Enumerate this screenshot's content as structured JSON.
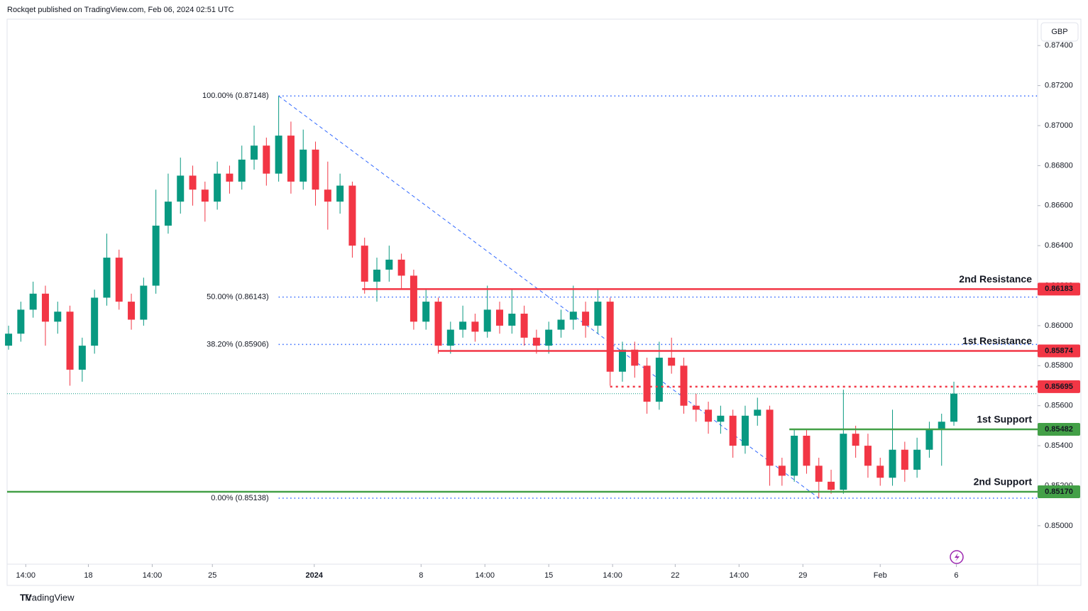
{
  "header": {
    "published": "Rockqet published on TradingView.com, Feb 06, 2024 02:51 UTC",
    "currency": "GBP",
    "brand": "TradingView"
  },
  "chart_data": {
    "type": "candlestick",
    "up_color": "#089981",
    "down_color": "#f23645",
    "candles": [
      [
        0.859,
        0.86,
        0.8588,
        0.8596
      ],
      [
        0.8596,
        0.8612,
        0.8592,
        0.8608
      ],
      [
        0.8608,
        0.8622,
        0.8604,
        0.8616
      ],
      [
        0.8616,
        0.862,
        0.859,
        0.8602
      ],
      [
        0.8602,
        0.8612,
        0.8596,
        0.8607
      ],
      [
        0.8607,
        0.861,
        0.857,
        0.8578
      ],
      [
        0.8578,
        0.8594,
        0.8572,
        0.859
      ],
      [
        0.859,
        0.8618,
        0.8586,
        0.8614
      ],
      [
        0.8614,
        0.8646,
        0.861,
        0.8634
      ],
      [
        0.8634,
        0.8638,
        0.8608,
        0.8612
      ],
      [
        0.8612,
        0.8616,
        0.8598,
        0.8603
      ],
      [
        0.8603,
        0.8624,
        0.86,
        0.862
      ],
      [
        0.862,
        0.8668,
        0.8616,
        0.865
      ],
      [
        0.865,
        0.8676,
        0.8646,
        0.8662
      ],
      [
        0.8662,
        0.8684,
        0.8656,
        0.8675
      ],
      [
        0.8675,
        0.868,
        0.866,
        0.8668
      ],
      [
        0.8668,
        0.8672,
        0.8652,
        0.8662
      ],
      [
        0.8662,
        0.8682,
        0.8658,
        0.8676
      ],
      [
        0.8676,
        0.868,
        0.8666,
        0.8672
      ],
      [
        0.8672,
        0.869,
        0.8668,
        0.8683
      ],
      [
        0.8683,
        0.87,
        0.8678,
        0.869
      ],
      [
        0.869,
        0.8694,
        0.867,
        0.8676
      ],
      [
        0.8676,
        0.87148,
        0.8672,
        0.8695
      ],
      [
        0.8695,
        0.8702,
        0.8666,
        0.8672
      ],
      [
        0.8672,
        0.8698,
        0.8668,
        0.8688
      ],
      [
        0.8688,
        0.8692,
        0.866,
        0.8668
      ],
      [
        0.8668,
        0.8682,
        0.8648,
        0.8662
      ],
      [
        0.8662,
        0.8676,
        0.8656,
        0.867
      ],
      [
        0.867,
        0.8672,
        0.8634,
        0.864
      ],
      [
        0.864,
        0.8644,
        0.8616,
        0.8622
      ],
      [
        0.8622,
        0.8634,
        0.8612,
        0.8628
      ],
      [
        0.8628,
        0.864,
        0.8622,
        0.8633
      ],
      [
        0.8633,
        0.8636,
        0.8618,
        0.8625
      ],
      [
        0.8625,
        0.8628,
        0.8598,
        0.8602
      ],
      [
        0.8602,
        0.8618,
        0.8598,
        0.8612
      ],
      [
        0.8612,
        0.8614,
        0.8586,
        0.859
      ],
      [
        0.859,
        0.8602,
        0.8586,
        0.8598
      ],
      [
        0.8598,
        0.861,
        0.8594,
        0.8602
      ],
      [
        0.8602,
        0.8606,
        0.8592,
        0.8597
      ],
      [
        0.8597,
        0.862,
        0.8594,
        0.8608
      ],
      [
        0.8608,
        0.8612,
        0.8596,
        0.86
      ],
      [
        0.86,
        0.8618,
        0.8596,
        0.8606
      ],
      [
        0.8606,
        0.861,
        0.859,
        0.8594
      ],
      [
        0.8594,
        0.8598,
        0.8586,
        0.859
      ],
      [
        0.859,
        0.8602,
        0.8586,
        0.8598
      ],
      [
        0.8598,
        0.8608,
        0.8594,
        0.8603
      ],
      [
        0.8603,
        0.862,
        0.8598,
        0.8607
      ],
      [
        0.8607,
        0.8612,
        0.8594,
        0.86
      ],
      [
        0.86,
        0.8618,
        0.8596,
        0.8612
      ],
      [
        0.8612,
        0.8614,
        0.857,
        0.8577
      ],
      [
        0.8577,
        0.8592,
        0.8572,
        0.8588
      ],
      [
        0.8588,
        0.8592,
        0.8574,
        0.858
      ],
      [
        0.858,
        0.8584,
        0.8556,
        0.8562
      ],
      [
        0.8562,
        0.8592,
        0.8558,
        0.8584
      ],
      [
        0.8584,
        0.8594,
        0.8576,
        0.858
      ],
      [
        0.858,
        0.8584,
        0.8556,
        0.856
      ],
      [
        0.856,
        0.8566,
        0.8552,
        0.8558
      ],
      [
        0.8558,
        0.8562,
        0.8546,
        0.8552
      ],
      [
        0.8552,
        0.856,
        0.8546,
        0.8555
      ],
      [
        0.8555,
        0.8558,
        0.8534,
        0.854
      ],
      [
        0.854,
        0.856,
        0.8536,
        0.8555
      ],
      [
        0.8555,
        0.8564,
        0.855,
        0.8558
      ],
      [
        0.8558,
        0.856,
        0.852,
        0.853
      ],
      [
        0.853,
        0.8534,
        0.852,
        0.8525
      ],
      [
        0.8525,
        0.8548,
        0.8522,
        0.8545
      ],
      [
        0.8545,
        0.8548,
        0.8526,
        0.853
      ],
      [
        0.853,
        0.8534,
        0.85138,
        0.8522
      ],
      [
        0.8522,
        0.8528,
        0.8516,
        0.8518
      ],
      [
        0.8518,
        0.8568,
        0.8516,
        0.8546
      ],
      [
        0.8546,
        0.855,
        0.8534,
        0.854
      ],
      [
        0.854,
        0.8546,
        0.8524,
        0.853
      ],
      [
        0.853,
        0.8534,
        0.852,
        0.8524
      ],
      [
        0.8524,
        0.8558,
        0.852,
        0.8538
      ],
      [
        0.8538,
        0.8542,
        0.8522,
        0.8528
      ],
      [
        0.8528,
        0.8544,
        0.8524,
        0.8538
      ],
      [
        0.8538,
        0.8552,
        0.8534,
        0.8548
      ],
      [
        0.8548,
        0.8556,
        0.853,
        0.8552
      ],
      [
        0.8552,
        0.8572,
        0.855,
        0.8566
      ]
    ],
    "xlim": [
      -0.12,
      83.82
    ],
    "xticks": [
      {
        "value": 1.4,
        "label": "14:00"
      },
      {
        "value": 6.5,
        "label": "18"
      },
      {
        "value": 11.7,
        "label": "14:00"
      },
      {
        "value": 16.6,
        "label": "25"
      },
      {
        "value": 24.9,
        "label": "2024"
      },
      {
        "value": 33.6,
        "label": "8"
      },
      {
        "value": 38.8,
        "label": "14:00"
      },
      {
        "value": 44,
        "label": "15"
      },
      {
        "value": 49.2,
        "label": "14:00"
      },
      {
        "value": 54.3,
        "label": "22"
      },
      {
        "value": 59.5,
        "label": "14:00"
      },
      {
        "value": 64.7,
        "label": "29"
      },
      {
        "value": 71,
        "label": "Feb"
      },
      {
        "value": 77.2,
        "label": "6"
      }
    ],
    "ylim": [
      0.84808,
      0.87532
    ],
    "yticks": [
      {
        "value": 0.85,
        "label": "0.85000"
      },
      {
        "value": 0.852,
        "label": "0.85200"
      },
      {
        "value": 0.854,
        "label": "0.85400"
      },
      {
        "value": 0.856,
        "label": "0.85600"
      },
      {
        "value": 0.858,
        "label": "0.85800"
      },
      {
        "value": 0.86,
        "label": "0.86000"
      },
      {
        "value": 0.862,
        "label": "0.86200"
      },
      {
        "value": 0.864,
        "label": "0.86400"
      },
      {
        "value": 0.866,
        "label": "0.86600"
      },
      {
        "value": 0.868,
        "label": "0.86800"
      },
      {
        "value": 0.87,
        "label": "0.87000"
      },
      {
        "value": 0.872,
        "label": "0.87200"
      },
      {
        "value": 0.874,
        "label": "0.87400"
      }
    ],
    "grid": false,
    "levels": [
      {
        "name": "2nd Resistance",
        "value": 0.86183,
        "value_label": "0.86183",
        "color": "#f23645",
        "style": "solid",
        "x_start": 28.8
      },
      {
        "name": "1st Resistance",
        "value": 0.85874,
        "value_label": "0.85874",
        "color": "#f23645",
        "style": "solid",
        "x_start": 35
      },
      {
        "value": 0.85695,
        "value_label": "0.85695",
        "color": "#f23645",
        "style": "dotted",
        "x_start": 49
      },
      {
        "name": "1st Support",
        "value": 0.85482,
        "value_label": "0.85482",
        "color": "#43a047",
        "style": "solid",
        "x_start": 63.6
      },
      {
        "name": "2nd Support",
        "value": 0.8517,
        "value_label": "0.85170",
        "color": "#43a047",
        "style": "solid",
        "x_start": -0.12
      }
    ],
    "fib": {
      "color": "#2962ff",
      "x_start": 22,
      "x_end": 66,
      "levels": [
        {
          "value": 0.87148,
          "label": "100.00% (0.87148)"
        },
        {
          "value": 0.86143,
          "label": "50.00% (0.86143)"
        },
        {
          "value": 0.85906,
          "label": "38.20% (0.85906)"
        },
        {
          "value": 0.85138,
          "label": "0.00% (0.85138)"
        }
      ]
    }
  }
}
